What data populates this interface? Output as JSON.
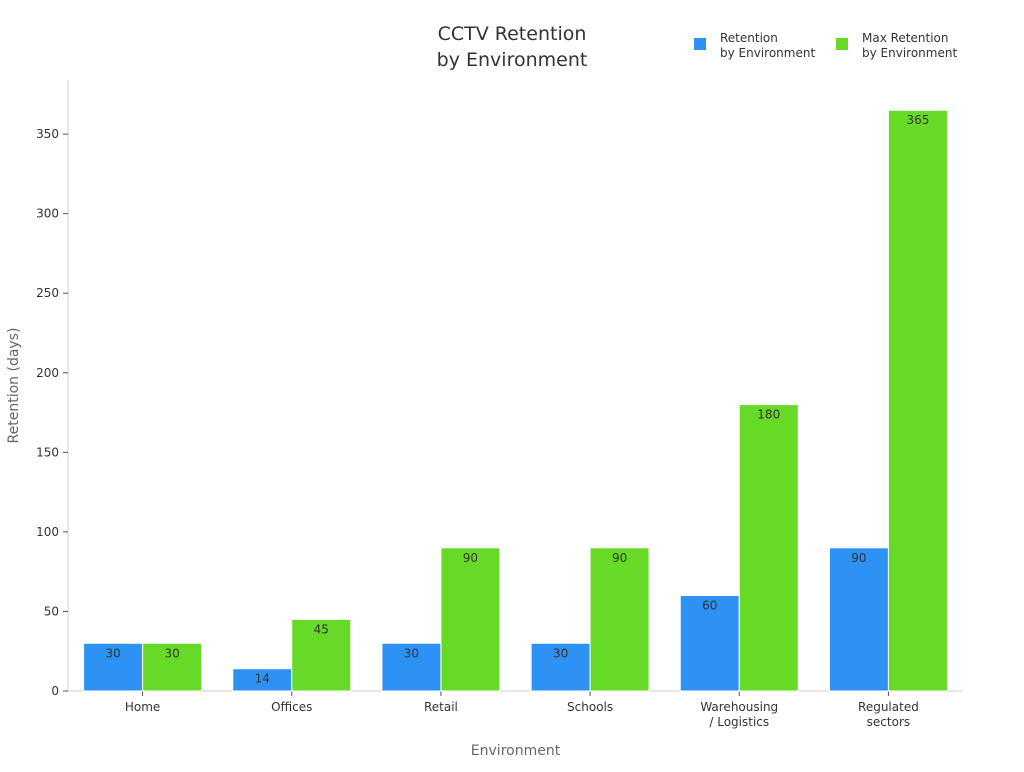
{
  "chart_data": {
    "type": "bar",
    "title": [
      "CCTV Retention",
      "by Environment"
    ],
    "xlabel": "Environment",
    "ylabel": "Retention (days)",
    "categories": [
      [
        "Home"
      ],
      [
        "Offices"
      ],
      [
        "Retail"
      ],
      [
        "Schools"
      ],
      [
        "Warehousing",
        "/ Logistics"
      ],
      [
        "Regulated",
        "sectors"
      ]
    ],
    "series": [
      {
        "name": [
          "Retention",
          "by Environment"
        ],
        "color": "#2e91f4",
        "values": [
          30,
          14,
          30,
          30,
          60,
          90
        ]
      },
      {
        "name": [
          "Max Retention",
          "by Environment"
        ],
        "color": "#66da26",
        "values": [
          30,
          45,
          90,
          90,
          180,
          365
        ]
      }
    ],
    "ylim": [
      0,
      384
    ],
    "yticks": [
      0,
      50,
      100,
      150,
      200,
      250,
      300,
      350
    ],
    "grid": false,
    "legend": "top-right",
    "data_labels": true
  }
}
